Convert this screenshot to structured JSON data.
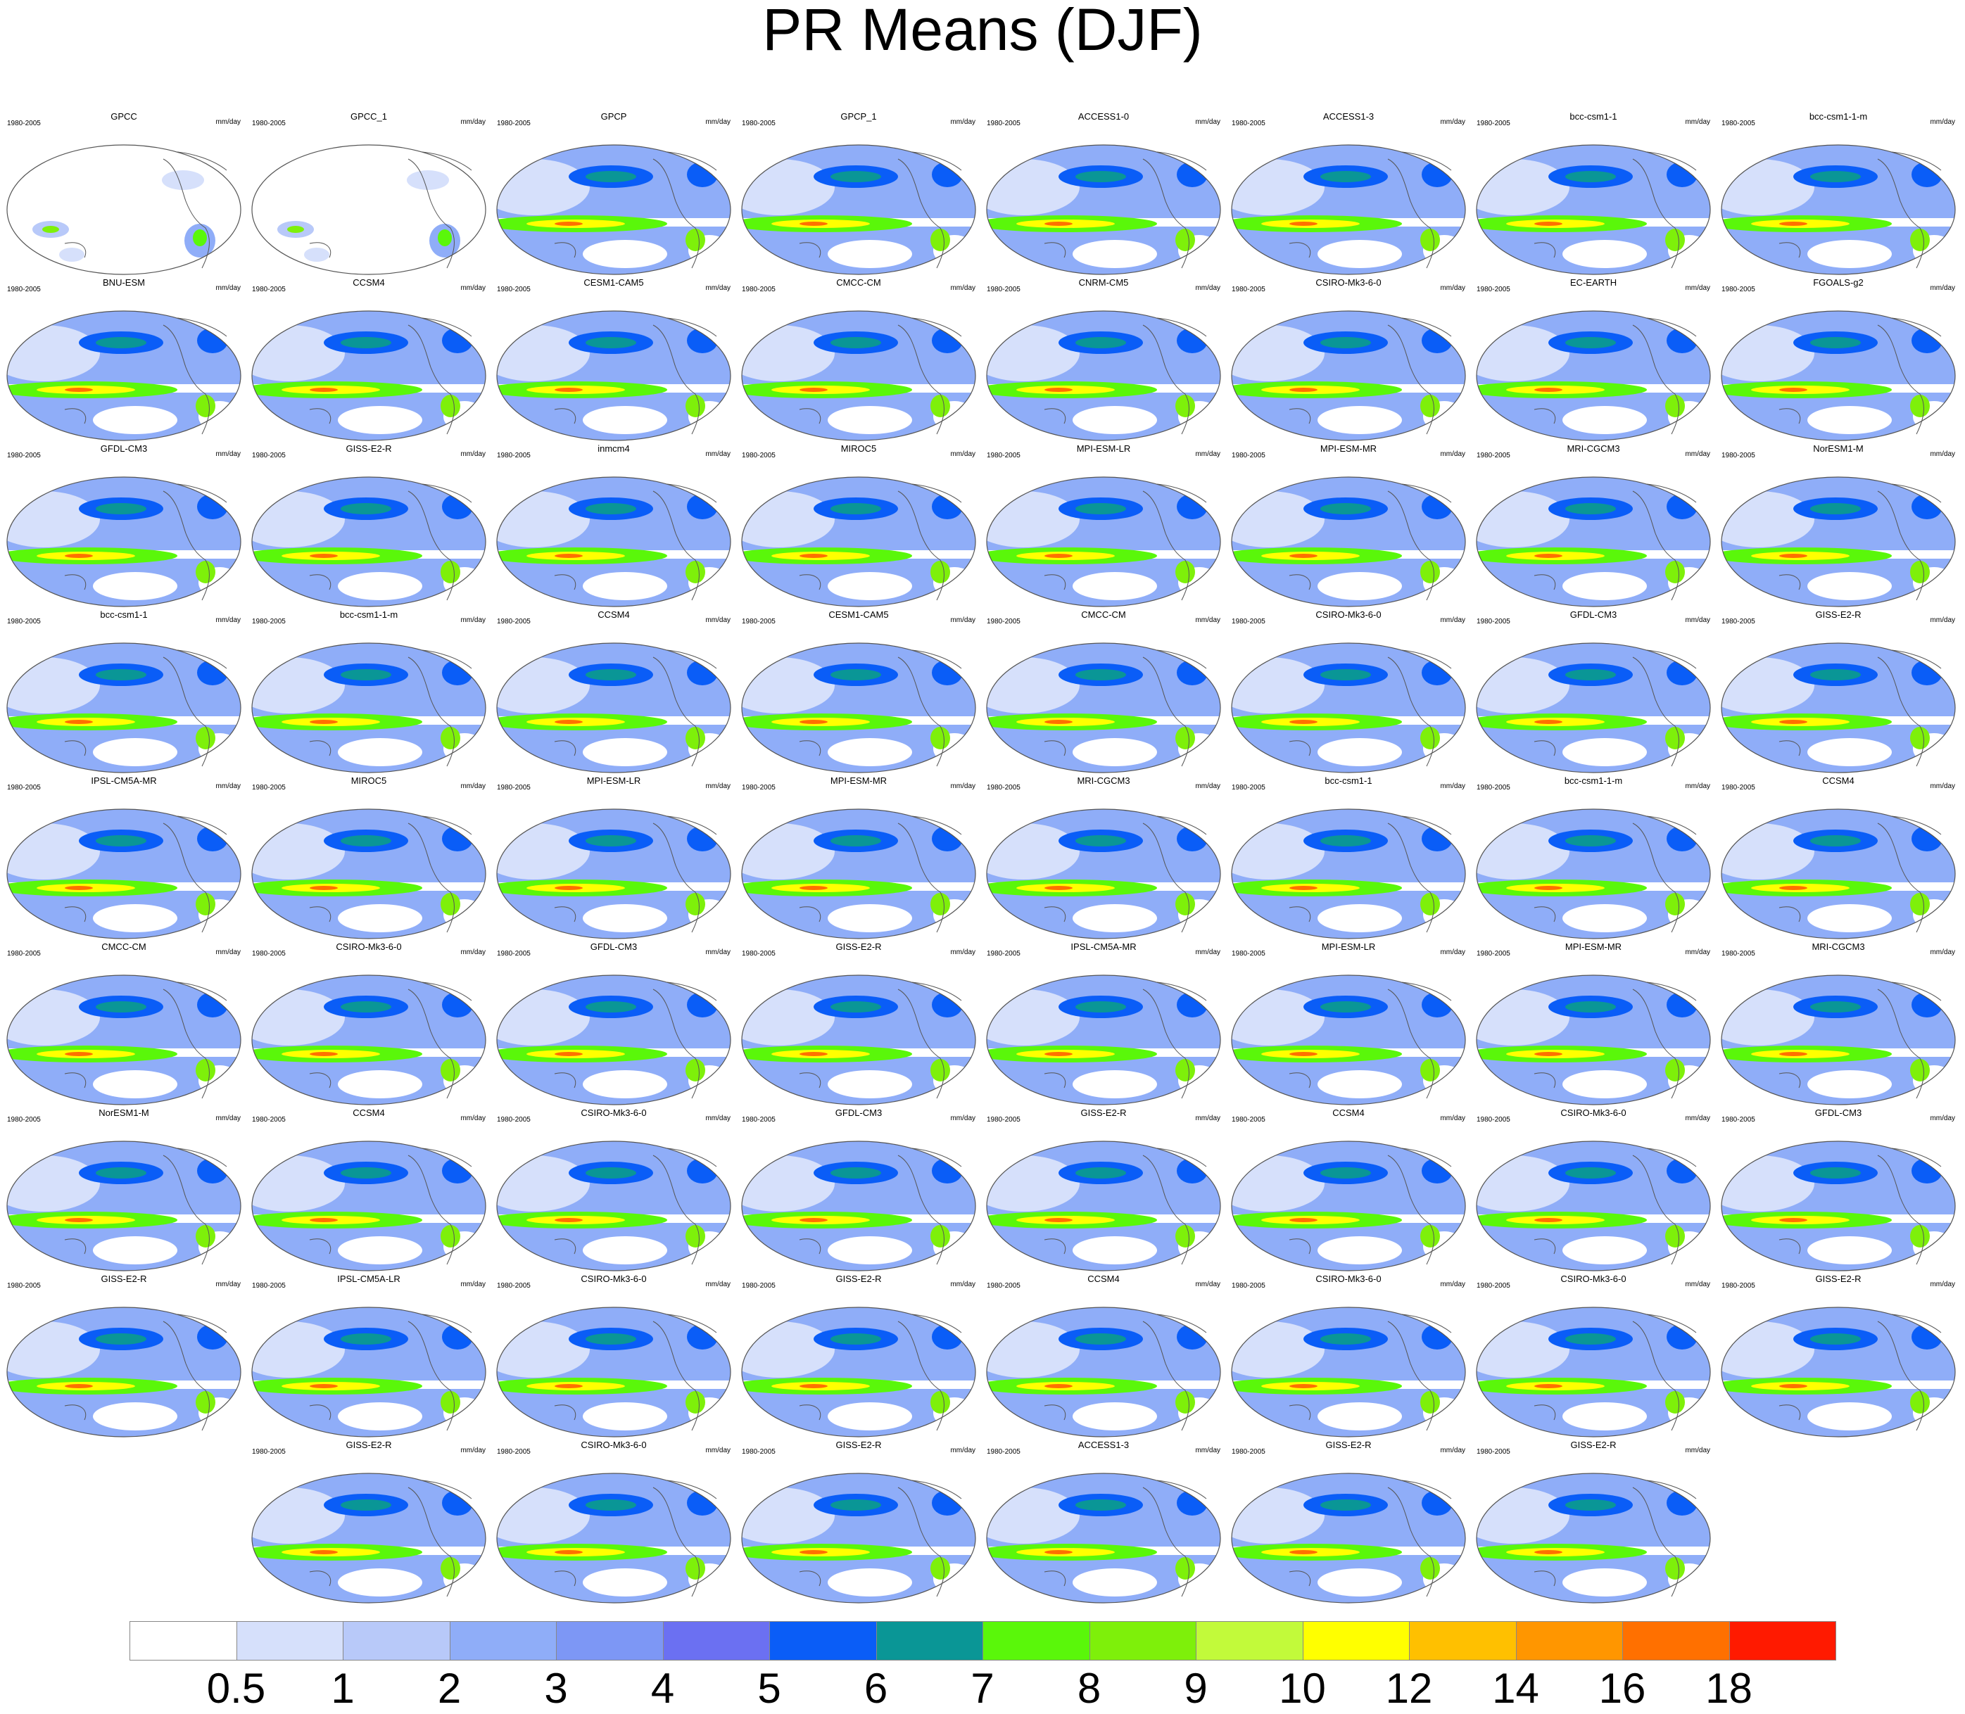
{
  "title": "PR Means (DJF)",
  "panel_period": "1980-2005",
  "panel_units": "mm/day",
  "panels": [
    {
      "name": "GPCC",
      "style": "obs"
    },
    {
      "name": "GPCC_1",
      "style": "obs"
    },
    {
      "name": "GPCP",
      "style": "model"
    },
    {
      "name": "GPCP_1",
      "style": "model"
    },
    {
      "name": "ACCESS1-0",
      "style": "model"
    },
    {
      "name": "ACCESS1-3",
      "style": "model"
    },
    {
      "name": "bcc-csm1-1",
      "style": "model"
    },
    {
      "name": "bcc-csm1-1-m",
      "style": "model"
    },
    {
      "name": "BNU-ESM",
      "style": "model"
    },
    {
      "name": "CCSM4",
      "style": "model"
    },
    {
      "name": "CESM1-CAM5",
      "style": "model"
    },
    {
      "name": "CMCC-CM",
      "style": "model"
    },
    {
      "name": "CNRM-CM5",
      "style": "model"
    },
    {
      "name": "CSIRO-Mk3-6-0",
      "style": "model"
    },
    {
      "name": "EC-EARTH",
      "style": "model"
    },
    {
      "name": "FGOALS-g2",
      "style": "model"
    },
    {
      "name": "GFDL-CM3",
      "style": "model"
    },
    {
      "name": "GISS-E2-R",
      "style": "model"
    },
    {
      "name": "inmcm4",
      "style": "model"
    },
    {
      "name": "MIROC5",
      "style": "model"
    },
    {
      "name": "MPI-ESM-LR",
      "style": "model"
    },
    {
      "name": "MPI-ESM-MR",
      "style": "model"
    },
    {
      "name": "MRI-CGCM3",
      "style": "model"
    },
    {
      "name": "NorESM1-M",
      "style": "model"
    },
    {
      "name": "bcc-csm1-1",
      "style": "model"
    },
    {
      "name": "bcc-csm1-1-m",
      "style": "model"
    },
    {
      "name": "CCSM4",
      "style": "model"
    },
    {
      "name": "CESM1-CAM5",
      "style": "model"
    },
    {
      "name": "CMCC-CM",
      "style": "model"
    },
    {
      "name": "CSIRO-Mk3-6-0",
      "style": "model"
    },
    {
      "name": "GFDL-CM3",
      "style": "model"
    },
    {
      "name": "GISS-E2-R",
      "style": "model"
    },
    {
      "name": "IPSL-CM5A-MR",
      "style": "model"
    },
    {
      "name": "MIROC5",
      "style": "model"
    },
    {
      "name": "MPI-ESM-LR",
      "style": "model"
    },
    {
      "name": "MPI-ESM-MR",
      "style": "model"
    },
    {
      "name": "MRI-CGCM3",
      "style": "model"
    },
    {
      "name": "bcc-csm1-1",
      "style": "model"
    },
    {
      "name": "bcc-csm1-1-m",
      "style": "model"
    },
    {
      "name": "CCSM4",
      "style": "model"
    },
    {
      "name": "CMCC-CM",
      "style": "model"
    },
    {
      "name": "CSIRO-Mk3-6-0",
      "style": "model"
    },
    {
      "name": "GFDL-CM3",
      "style": "model"
    },
    {
      "name": "GISS-E2-R",
      "style": "model"
    },
    {
      "name": "IPSL-CM5A-MR",
      "style": "model"
    },
    {
      "name": "MPI-ESM-LR",
      "style": "model"
    },
    {
      "name": "MPI-ESM-MR",
      "style": "model"
    },
    {
      "name": "MRI-CGCM3",
      "style": "model"
    },
    {
      "name": "NorESM1-M",
      "style": "model"
    },
    {
      "name": "CCSM4",
      "style": "model"
    },
    {
      "name": "CSIRO-Mk3-6-0",
      "style": "model"
    },
    {
      "name": "GFDL-CM3",
      "style": "model"
    },
    {
      "name": "GISS-E2-R",
      "style": "model"
    },
    {
      "name": "CCSM4",
      "style": "model"
    },
    {
      "name": "CSIRO-Mk3-6-0",
      "style": "model"
    },
    {
      "name": "GFDL-CM3",
      "style": "model"
    },
    {
      "name": "GISS-E2-R",
      "style": "model"
    },
    {
      "name": "IPSL-CM5A-LR",
      "style": "model"
    },
    {
      "name": "CSIRO-Mk3-6-0",
      "style": "model"
    },
    {
      "name": "GISS-E2-R",
      "style": "model"
    },
    {
      "name": "CCSM4",
      "style": "model"
    },
    {
      "name": "CSIRO-Mk3-6-0",
      "style": "model"
    },
    {
      "name": "CSIRO-Mk3-6-0",
      "style": "model"
    },
    {
      "name": "GISS-E2-R",
      "style": "model"
    },
    {
      "name": "GISS-E2-R",
      "style": "model"
    },
    {
      "name": "CSIRO-Mk3-6-0",
      "style": "model"
    },
    {
      "name": "GISS-E2-R",
      "style": "model"
    },
    {
      "name": "ACCESS1-3",
      "style": "model"
    },
    {
      "name": "GISS-E2-R",
      "style": "model"
    },
    {
      "name": "GISS-E2-R",
      "style": "model"
    }
  ],
  "colorbar": {
    "colors": [
      "#ffffff",
      "#d6e0fb",
      "#b8c9f9",
      "#8fadf8",
      "#7d97f5",
      "#6b70f2",
      "#0a5df7",
      "#0a9696",
      "#5af70a",
      "#7ef00a",
      "#c2fa3a",
      "#ffff00",
      "#ffc000",
      "#ff9600",
      "#ff7000",
      "#ff1a00"
    ],
    "labels": [
      "0.5",
      "1",
      "2",
      "3",
      "4",
      "5",
      "6",
      "7",
      "8",
      "9",
      "10",
      "12",
      "14",
      "16",
      "18"
    ]
  }
}
